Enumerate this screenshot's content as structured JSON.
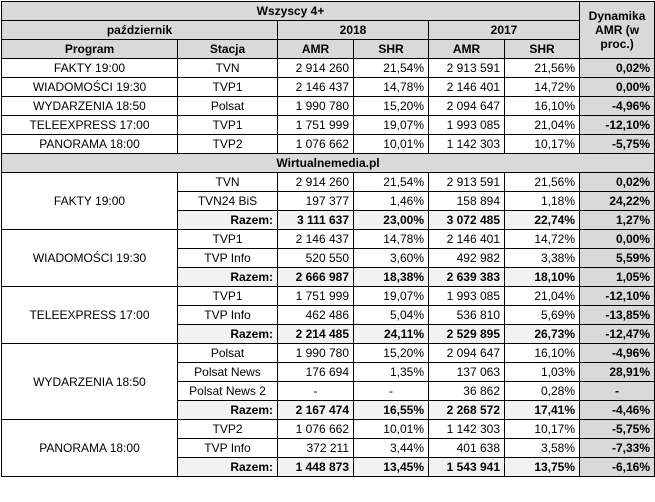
{
  "header": {
    "top_title": "Wszyscy 4+",
    "month": "październik",
    "year_a": "2018",
    "year_b": "2017",
    "dyn_title": "Dynamika AMR (w proc.)",
    "col_program": "Program",
    "col_station": "Stacja",
    "amr": "AMR",
    "shr": "SHR"
  },
  "top_rows": [
    {
      "program": "FAKTY 19:00",
      "station": "TVN",
      "amr18": "2 914 260",
      "shr18": "21,54%",
      "amr17": "2 913 591",
      "shr17": "21,56%",
      "dyn": "0,02%"
    },
    {
      "program": "WIADOMOŚCI 19:30",
      "station": "TVP1",
      "amr18": "2 146 437",
      "shr18": "14,78%",
      "amr17": "2 146 401",
      "shr17": "14,72%",
      "dyn": "0,00%"
    },
    {
      "program": "WYDARZENIA 18:50",
      "station": "Polsat",
      "amr18": "1 990 780",
      "shr18": "15,20%",
      "amr17": "2 094 647",
      "shr17": "16,10%",
      "dyn": "-4,96%"
    },
    {
      "program": "TELEEXPRESS 17:00",
      "station": "TVP1",
      "amr18": "1 751 999",
      "shr18": "19,07%",
      "amr17": "1 993 085",
      "shr17": "21,04%",
      "dyn": "-12,10%"
    },
    {
      "program": "PANORAMA 18:00",
      "station": "TVP2",
      "amr18": "1 076 662",
      "shr18": "10,01%",
      "amr17": "1 142 303",
      "shr17": "10,17%",
      "dyn": "-5,75%"
    }
  ],
  "section_title": "Wirtualnemedia.pl",
  "groups": [
    {
      "program": "FAKTY 19:00",
      "rows": [
        {
          "station": "TVN",
          "amr18": "2 914 260",
          "shr18": "21,54%",
          "amr17": "2 913 591",
          "shr17": "21,56%",
          "dyn": "0,02%"
        },
        {
          "station": "TVN24 BiS",
          "amr18": "197 377",
          "shr18": "1,46%",
          "amr17": "158 894",
          "shr17": "1,18%",
          "dyn": "24,22%"
        },
        {
          "station": "Razem:",
          "amr18": "3 111 637",
          "shr18": "23,00%",
          "amr17": "3 072 485",
          "shr17": "22,74%",
          "dyn": "1,27%",
          "total": true
        }
      ]
    },
    {
      "program": "WIADOMOŚCI 19:30",
      "rows": [
        {
          "station": "TVP1",
          "amr18": "2 146 437",
          "shr18": "14,78%",
          "amr17": "2 146 401",
          "shr17": "14,72%",
          "dyn": "0,00%"
        },
        {
          "station": "TVP Info",
          "amr18": "520 550",
          "shr18": "3,60%",
          "amr17": "492 982",
          "shr17": "3,38%",
          "dyn": "5,59%"
        },
        {
          "station": "Razem:",
          "amr18": "2 666 987",
          "shr18": "18,38%",
          "amr17": "2 639 383",
          "shr17": "18,10%",
          "dyn": "1,05%",
          "total": true
        }
      ]
    },
    {
      "program": "TELEEXPRESS 17:00",
      "rows": [
        {
          "station": "TVP1",
          "amr18": "1 751 999",
          "shr18": "19,07%",
          "amr17": "1 993 085",
          "shr17": "21,04%",
          "dyn": "-12,10%"
        },
        {
          "station": "TVP Info",
          "amr18": "462 486",
          "shr18": "5,04%",
          "amr17": "536 810",
          "shr17": "5,69%",
          "dyn": "-13,85%"
        },
        {
          "station": "Razem:",
          "amr18": "2 214 485",
          "shr18": "24,11%",
          "amr17": "2 529 895",
          "shr17": "26,73%",
          "dyn": "-12,47%",
          "total": true
        }
      ]
    },
    {
      "program": "WYDARZENIA 18:50",
      "rows": [
        {
          "station": "Polsat",
          "amr18": "1 990 780",
          "shr18": "15,20%",
          "amr17": "2 094 647",
          "shr17": "16,10%",
          "dyn": "-4,96%"
        },
        {
          "station": "Polsat News",
          "amr18": "176 694",
          "shr18": "1,35%",
          "amr17": "137 063",
          "shr17": "1,03%",
          "dyn": "28,91%"
        },
        {
          "station": "Polsat News 2",
          "amr18": "-",
          "shr18": "-",
          "amr17": "36 862",
          "shr17": "0,28%",
          "dyn": "-"
        },
        {
          "station": "Razem:",
          "amr18": "2 167 474",
          "shr18": "16,55%",
          "amr17": "2 268 572",
          "shr17": "17,41%",
          "dyn": "-4,46%",
          "total": true
        }
      ]
    },
    {
      "program": "PANORAMA 18:00",
      "rows": [
        {
          "station": "TVP2",
          "amr18": "1 076 662",
          "shr18": "10,01%",
          "amr17": "1 142 303",
          "shr17": "10,17%",
          "dyn": "-5,75%"
        },
        {
          "station": "TVP Info",
          "amr18": "372 211",
          "shr18": "3,44%",
          "amr17": "401 638",
          "shr17": "3,58%",
          "dyn": "-7,33%"
        },
        {
          "station": "Razem:",
          "amr18": "1 448 873",
          "shr18": "13,45%",
          "amr17": "1 543 941",
          "shr17": "13,75%",
          "dyn": "-6,16%",
          "total": true
        }
      ]
    }
  ]
}
